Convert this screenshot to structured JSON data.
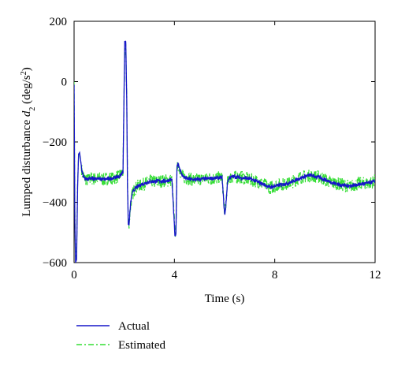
{
  "chart_data": {
    "type": "line",
    "xlabel": "Time (s)",
    "ylabel_prefix": "Lumped disturbance ",
    "ylabel_var": "d",
    "ylabel_sub": "2",
    "ylabel_unit_open": " (deg/s",
    "ylabel_unit_sup": "2",
    "ylabel_unit_close": ")",
    "xlim": [
      0,
      12
    ],
    "ylim": [
      -600,
      200
    ],
    "xticks": [
      0,
      4,
      8,
      12
    ],
    "yticks": [
      200,
      0,
      -200,
      -400,
      -600
    ],
    "grid": false,
    "legend_position": "bottom-left, below axes",
    "series": [
      {
        "name": "Actual",
        "color": "#1515c8",
        "style": "solid",
        "x": [
          0,
          0.01,
          0.03,
          0.06,
          0.1,
          0.14,
          0.18,
          0.22,
          0.26,
          0.32,
          0.4,
          0.5,
          0.65,
          0.8,
          1.0,
          1.2,
          1.4,
          1.6,
          1.8,
          1.95,
          2.02,
          2.06,
          2.1,
          2.13,
          2.16,
          2.19,
          2.22,
          2.26,
          2.3,
          2.38,
          2.5,
          2.7,
          3.0,
          3.3,
          3.6,
          3.9,
          4.02,
          4.06,
          4.1,
          4.14,
          4.18,
          4.25,
          4.35,
          4.5,
          4.8,
          5.2,
          5.6,
          5.9,
          6.0,
          6.04,
          6.08,
          6.12,
          6.2,
          6.35,
          6.6,
          7.0,
          7.4,
          7.8,
          8.2,
          8.6,
          9.0,
          9.4,
          9.8,
          10.2,
          10.6,
          11.0,
          11.4,
          11.8,
          12.0
        ],
        "y": [
          -10,
          -150,
          -450,
          -600,
          -590,
          -350,
          -240,
          -235,
          -260,
          -300,
          -320,
          -325,
          -322,
          -320,
          -322,
          -324,
          -322,
          -318,
          -315,
          -300,
          130,
          135,
          -60,
          -350,
          -470,
          -478,
          -440,
          -400,
          -375,
          -360,
          -350,
          -340,
          -332,
          -330,
          -330,
          -325,
          -510,
          -510,
          -290,
          -268,
          -280,
          -300,
          -315,
          -322,
          -325,
          -322,
          -320,
          -318,
          -440,
          -425,
          -375,
          -330,
          -318,
          -315,
          -318,
          -322,
          -335,
          -350,
          -343,
          -335,
          -320,
          -310,
          -318,
          -332,
          -342,
          -346,
          -340,
          -335,
          -330
        ]
      },
      {
        "name": "Estimated",
        "color": "#33dd33",
        "style": "dash-dot",
        "x": [
          0,
          0.01,
          0.03,
          0.06,
          0.1,
          0.14,
          0.18,
          0.22,
          0.26,
          0.32,
          0.4,
          0.5,
          0.65,
          0.8,
          1.0,
          1.2,
          1.4,
          1.6,
          1.8,
          1.95,
          2.02,
          2.06,
          2.1,
          2.13,
          2.16,
          2.19,
          2.22,
          2.26,
          2.3,
          2.38,
          2.5,
          2.7,
          3.0,
          3.3,
          3.6,
          3.9,
          4.02,
          4.06,
          4.1,
          4.14,
          4.18,
          4.25,
          4.35,
          4.5,
          4.8,
          5.2,
          5.6,
          5.9,
          6.0,
          6.04,
          6.08,
          6.12,
          6.2,
          6.35,
          6.6,
          7.0,
          7.4,
          7.8,
          8.2,
          8.6,
          9.0,
          9.4,
          9.8,
          10.2,
          10.6,
          11.0,
          11.4,
          11.8,
          12.0
        ],
        "y": [
          0,
          -120,
          -420,
          -590,
          -575,
          -340,
          -245,
          -240,
          -262,
          -302,
          -318,
          -328,
          -320,
          -322,
          -320,
          -326,
          -320,
          -320,
          -312,
          -298,
          100,
          115,
          -40,
          -330,
          -455,
          -470,
          -445,
          -405,
          -380,
          -362,
          -348,
          -342,
          -330,
          -332,
          -328,
          -327,
          -495,
          -500,
          -300,
          -272,
          -282,
          -302,
          -316,
          -320,
          -327,
          -320,
          -322,
          -316,
          -430,
          -420,
          -370,
          -335,
          -316,
          -318,
          -316,
          -324,
          -333,
          -352,
          -341,
          -337,
          -318,
          -312,
          -316,
          -334,
          -340,
          -348,
          -338,
          -337,
          -328
        ]
      }
    ]
  }
}
